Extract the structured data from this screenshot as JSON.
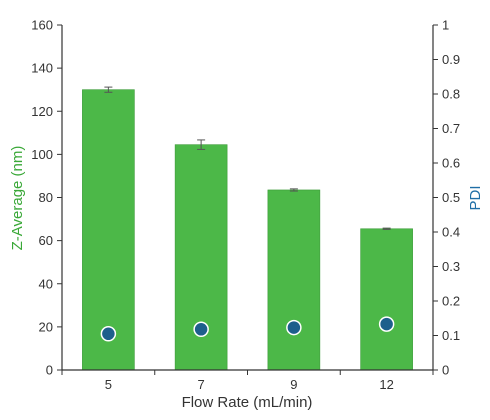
{
  "chart_data": {
    "type": "bar",
    "categories": [
      "5",
      "7",
      "9",
      "12"
    ],
    "xlabel": "Flow Rate (mL/min)",
    "series": [
      {
        "name": "Z-Average (nm)",
        "axis": "left",
        "type": "bar",
        "values": [
          130,
          104.5,
          83.5,
          65.5
        ],
        "error": [
          1.2,
          2.2,
          0.5,
          0.3
        ]
      },
      {
        "name": "PDI",
        "axis": "right",
        "type": "scatter",
        "values": [
          0.105,
          0.118,
          0.123,
          0.133
        ]
      }
    ],
    "ylabel_left": "Z-Average (nm)",
    "ylabel_right": "PDI",
    "ylim_left": [
      0,
      160
    ],
    "ylim_right": [
      0,
      1
    ],
    "yticks_left": [
      "0",
      "20",
      "40",
      "60",
      "80",
      "100",
      "120",
      "140",
      "160"
    ],
    "yticks_right": [
      "0",
      "0.1",
      "0.2",
      "0.3",
      "0.4",
      "0.5",
      "0.6",
      "0.7",
      "0.8",
      "0.9",
      "1"
    ],
    "grid": false,
    "legend": "none",
    "colors": {
      "bar": "#4cb848",
      "bar_stroke": "#3a9a37",
      "marker_fill": "#1d5f8c",
      "marker_stroke": "#ffffff",
      "left_label": "#3aa838",
      "right_label": "#1f6ea6",
      "axis": "#333333",
      "error_bar": "#555555"
    }
  }
}
